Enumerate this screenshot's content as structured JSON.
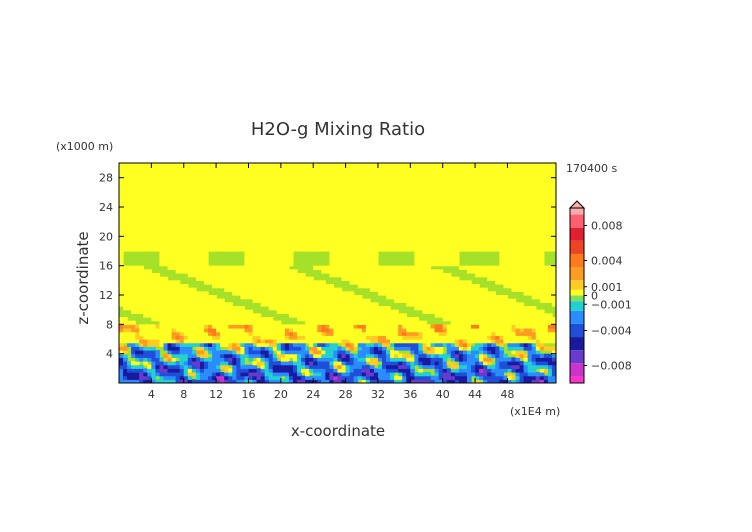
{
  "chart_data": {
    "type": "heatmap",
    "title": "H2O-g Mixing Ratio",
    "time_label": "170400 s",
    "xlabel": "x-coordinate",
    "ylabel": "z-coordinate",
    "x_unit": "(x1E4 m)",
    "y_unit": "(x1000 m)",
    "xlim": [
      0,
      54
    ],
    "ylim": [
      0,
      30
    ],
    "x_ticks": [
      4,
      8,
      12,
      16,
      20,
      24,
      28,
      32,
      36,
      40,
      44,
      48
    ],
    "y_ticks": [
      4,
      8,
      12,
      16,
      20,
      24,
      28
    ],
    "colorbar": {
      "labels": [
        "0.008",
        "0.004",
        "0.001",
        "0",
        "−0.001",
        "−0.004",
        "−0.008"
      ],
      "label_values": [
        0.008,
        0.004,
        0.001,
        0,
        -0.001,
        -0.004,
        -0.008
      ],
      "range": [
        -0.01,
        0.01
      ],
      "colors": [
        {
          "value": -0.01,
          "color": "#ff33cc"
        },
        {
          "value": -0.0085,
          "color": "#cc33cc"
        },
        {
          "value": -0.007,
          "color": "#6a3acc"
        },
        {
          "value": -0.0055,
          "color": "#1a1aa0"
        },
        {
          "value": -0.004,
          "color": "#1f4fd8"
        },
        {
          "value": -0.0025,
          "color": "#2a8cff"
        },
        {
          "value": -0.001,
          "color": "#22d0d0"
        },
        {
          "value": -0.0003,
          "color": "#7ee060"
        },
        {
          "value": 0.0003,
          "color": "#ffff22"
        },
        {
          "value": 0.001,
          "color": "#ffcc22"
        },
        {
          "value": 0.0025,
          "color": "#ff9a22"
        },
        {
          "value": 0.004,
          "color": "#ff7a1a"
        },
        {
          "value": 0.0055,
          "color": "#ee4422"
        },
        {
          "value": 0.007,
          "color": "#e02030"
        },
        {
          "value": 0.0085,
          "color": "#ff6070"
        },
        {
          "value": 0.01,
          "color": "#ffaaaa"
        }
      ]
    }
  }
}
